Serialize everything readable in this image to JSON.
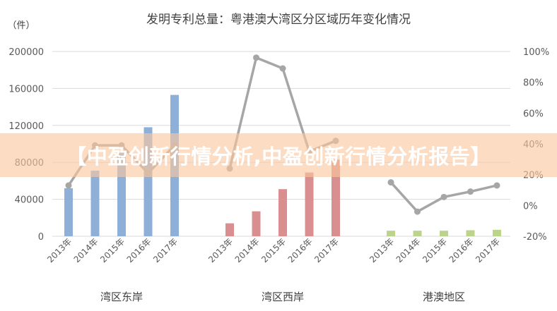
{
  "chart_data": {
    "type": "bar",
    "title": "发明专利总量：粤港澳大湾区分区域历年变化情况",
    "y_unit_label": "（件）",
    "ylim_left": [
      0,
      200000
    ],
    "yticks_left": [
      "0",
      "40000",
      "80000",
      "120000",
      "160000",
      "200000"
    ],
    "ylim_right": [
      -0.2,
      1.0
    ],
    "yticks_right": [
      "-20%",
      "0%",
      "20%",
      "40%",
      "60%",
      "80%",
      "100%"
    ],
    "grid": true,
    "groups": [
      {
        "name": "湾区东岸",
        "color": "#8eb0d8",
        "categories": [
          "2013年",
          "2014年",
          "2015年",
          "2016年",
          "2017年"
        ],
        "bar_values": [
          52000,
          71000,
          93000,
          118000,
          153000
        ],
        "line_values": [
          0.13,
          0.39,
          0.39,
          0.21,
          0.39
        ]
      },
      {
        "name": "湾区西岸",
        "color": "#d98f8f",
        "categories": [
          "2013年",
          "2014年",
          "2015年",
          "2016年",
          "2017年"
        ],
        "bar_values": [
          14000,
          27000,
          51000,
          69000,
          83000
        ],
        "line_values": [
          0.24,
          0.96,
          0.89,
          0.35,
          0.42
        ]
      },
      {
        "name": "港澳地区",
        "color": "#bcd38b",
        "categories": [
          "2013年",
          "2014年",
          "2015年",
          "2016年",
          "2017年"
        ],
        "bar_values": [
          6000,
          6000,
          6000,
          6500,
          7000
        ],
        "line_values": [
          0.15,
          -0.04,
          0.055,
          0.09,
          0.13
        ]
      }
    ],
    "line_color": "#a6a6a6"
  },
  "banner": {
    "text": "【中盈创新行情分析,中盈创新行情分析报告】"
  }
}
